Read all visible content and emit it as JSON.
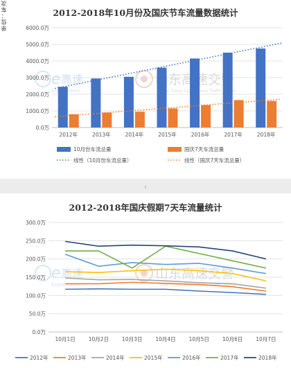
{
  "watermarks": [
    {
      "text": "高速",
      "sub": "Expressway",
      "glyph": "e"
    },
    {
      "text": "山东高速交警",
      "sub": "Shan Dong Expressway Traffic Police"
    }
  ],
  "separator_mark": "ı",
  "chart_data": [
    {
      "type": "bar",
      "title": "2012-2018年10月份及国庆节车流量数据统计",
      "ylabel": "单位：车次",
      "ylim": [
        0,
        6000
      ],
      "yticks": [
        "0.0万",
        "1000.0万",
        "2000.0万",
        "3000.0万",
        "4000.0万",
        "5000.0万",
        "6000.0万"
      ],
      "categories": [
        "2012年",
        "2013年",
        "2014年",
        "2015年",
        "2016年",
        "2017年",
        "2018年"
      ],
      "series": [
        {
          "name": "10月份车流总量",
          "color": "#4472c4",
          "values": [
            2450,
            2950,
            3050,
            3600,
            4150,
            4500,
            4750
          ]
        },
        {
          "name": "国庆7天车流总量",
          "color": "#ed7d31",
          "values": [
            800,
            900,
            950,
            1150,
            1350,
            1650,
            1600
          ]
        }
      ],
      "trendlines": [
        {
          "name": "线性（10月份车流总量）",
          "color": "#4472c4"
        },
        {
          "name": "线性（国庆7天车流总量）",
          "color": "#ed7d31"
        }
      ],
      "legend": "bottom"
    },
    {
      "type": "line",
      "title": "2012-2018年国庆假期7天车流量统计",
      "ylabel": "单位：车次",
      "ylim": [
        0,
        300
      ],
      "yticks": [
        "0.0万",
        "50.0万",
        "100.0万",
        "150.0万",
        "200.0万",
        "250.0万",
        "300.0万"
      ],
      "categories": [
        "10月1日",
        "10月2日",
        "10月3日",
        "10月4日",
        "10月5日",
        "10月6日",
        "10月7日"
      ],
      "series": [
        {
          "name": "2012年",
          "color": "#4472c4",
          "values": [
            117,
            118,
            117,
            117,
            112,
            108,
            103
          ]
        },
        {
          "name": "2013年",
          "color": "#ed7d31",
          "values": [
            132,
            132,
            136,
            133,
            130,
            124,
            112
          ]
        },
        {
          "name": "2014年",
          "color": "#a5a5a5",
          "values": [
            148,
            143,
            144,
            140,
            135,
            132,
            120
          ]
        },
        {
          "name": "2015年",
          "color": "#ffc000",
          "values": [
            165,
            163,
            168,
            172,
            168,
            160,
            140
          ]
        },
        {
          "name": "2016年",
          "color": "#5b9bd5",
          "values": [
            213,
            180,
            190,
            185,
            188,
            175,
            160
          ]
        },
        {
          "name": "2017年",
          "color": "#70ad47",
          "values": [
            222,
            222,
            175,
            235,
            215,
            195,
            175
          ]
        },
        {
          "name": "2018年",
          "color": "#264478",
          "values": [
            248,
            235,
            238,
            236,
            233,
            222,
            200
          ]
        }
      ],
      "legend": "bottom"
    }
  ]
}
